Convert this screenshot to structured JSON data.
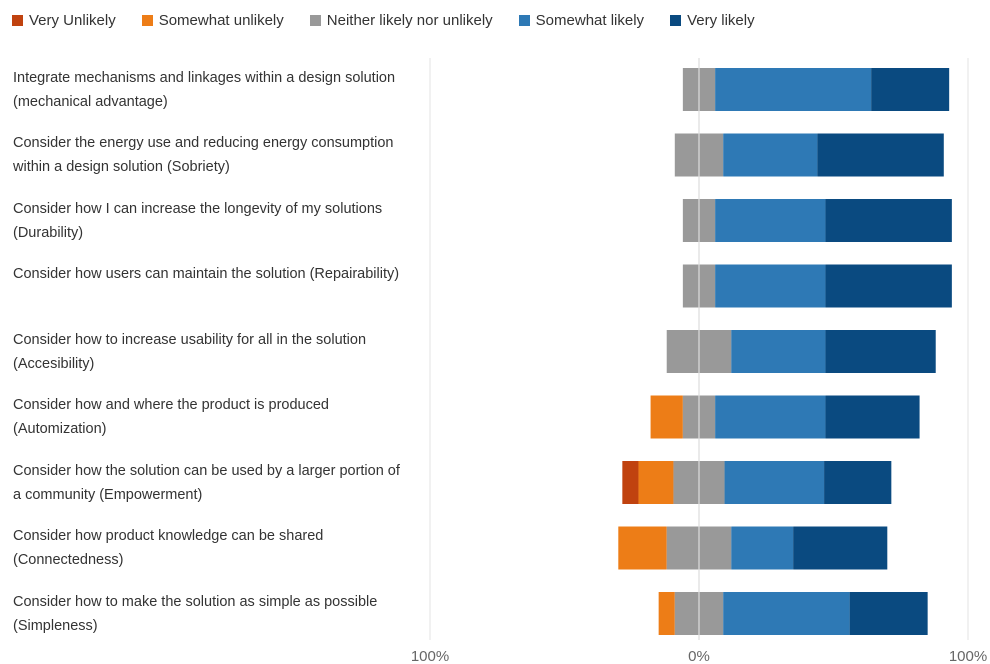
{
  "chart_data": {
    "type": "bar",
    "subtype": "diverging-stacked-percent",
    "legend_position": "top-left",
    "series": [
      {
        "name": "Very Unlikely",
        "color": "#c0420f"
      },
      {
        "name": "Somewhat unlikely",
        "color": "#ed7d17"
      },
      {
        "name": "Neither likely nor unlikely",
        "color": "#999999"
      },
      {
        "name": "Somewhat likely",
        "color": "#2e79b5"
      },
      {
        "name": "Very likely",
        "color": "#0a4a80"
      }
    ],
    "categories": [
      "Integrate mechanisms and linkages within a design solution (mechanical advantage)",
      "Consider the energy use and reducing energy consumption within a design solution (Sobriety)",
      "Consider how I can increase the longevity of my solutions (Durability)",
      "Consider how users can maintain the solution (Repairability)",
      "Consider how to increase usability for all in the solution (Accesibility)",
      "Consider how and where the product is produced (Automization)",
      "Consider how the solution can be used by a larger portion of a community (Empowerment)",
      "Consider how product knowledge can be shared (Connectedness)",
      "Consider how to make the solution as simple as possible (Simpleness)"
    ],
    "values": [
      [
        0,
        0,
        12,
        58,
        29
      ],
      [
        0,
        0,
        18,
        35,
        47
      ],
      [
        0,
        0,
        12,
        41,
        47
      ],
      [
        0,
        0,
        12,
        41,
        47
      ],
      [
        0,
        0,
        24,
        35,
        41
      ],
      [
        0,
        12,
        12,
        41,
        35
      ],
      [
        6,
        13,
        19,
        37,
        25
      ],
      [
        0,
        18,
        24,
        23,
        35
      ],
      [
        0,
        6,
        18,
        47,
        29
      ]
    ],
    "xlim": [
      -100,
      100
    ],
    "xtick_labels": [
      "100%",
      "0%",
      "100%"
    ],
    "center_line": true,
    "grid": false
  }
}
